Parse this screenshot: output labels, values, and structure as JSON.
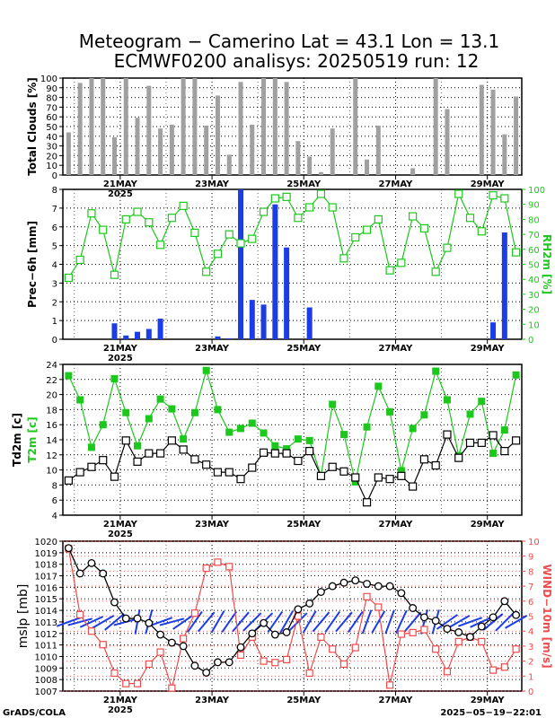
{
  "title": "Meteogram − Camerino Lat = 43.1 Lon = 13.1",
  "subtitle": "ECMWF0200 analisys: 20250519 run: 12",
  "footer_left": "GrADS/COLA",
  "footer_right": "2025−05−19−22:01",
  "colors": {
    "gray_bar": "#a0a0a0",
    "blue": "#1c3ce6",
    "green": "#1bc81b",
    "red": "#f04a4a",
    "black": "#000000"
  },
  "chart_data": [
    {
      "type": "bar",
      "panel": "clouds",
      "ylabel": "Total Clouds [%]",
      "ylim": [
        0,
        100
      ],
      "yticks": [
        "0",
        "10",
        "20",
        "30",
        "40",
        "50",
        "60",
        "70",
        "80",
        "90",
        "100"
      ],
      "xtick_labels": [
        "21MAY",
        "23MAY",
        "25MAY",
        "27MAY",
        "29MAY"
      ],
      "xtick_sublabel": "2025",
      "x_step_hours": 6,
      "values": [
        44,
        95,
        100,
        100,
        39,
        100,
        59,
        92,
        48,
        52,
        100,
        100,
        51,
        82,
        21,
        96,
        52,
        100,
        100,
        96,
        35,
        19,
        3,
        48,
        0,
        100,
        16,
        51,
        0,
        0,
        7,
        0,
        100,
        68,
        0,
        0,
        93,
        88,
        42,
        81
      ]
    },
    {
      "type": "bar+line",
      "panel": "precipitation",
      "ylabel": "Prec−6h [mm]",
      "ylabel_right": "RH2m [%]",
      "ylim": [
        0,
        8
      ],
      "ylim_right": [
        0,
        100
      ],
      "yticks": [
        "0",
        "1",
        "2",
        "3",
        "4",
        "5",
        "6",
        "7",
        "8"
      ],
      "yticks_right": [
        "0",
        "10",
        "20",
        "30",
        "40",
        "50",
        "60",
        "70",
        "80",
        "90",
        "100"
      ],
      "xtick_labels": [
        "21MAY",
        "23MAY",
        "25MAY",
        "27MAY",
        "29MAY"
      ],
      "xtick_sublabel": "2025",
      "series": [
        {
          "name": "Prec−6h",
          "kind": "bar",
          "values": [
            0,
            0,
            0,
            0,
            0.85,
            0.2,
            0.4,
            0.55,
            1.1,
            0,
            0,
            0,
            0,
            0.15,
            0.05,
            8.0,
            2.1,
            1.85,
            7.2,
            4.9,
            0,
            1.7,
            0,
            0,
            0,
            0,
            0,
            0,
            0,
            0,
            0,
            0,
            0,
            0,
            0,
            0,
            0,
            0.9,
            5.7,
            0
          ]
        },
        {
          "name": "RH2m",
          "kind": "line",
          "values": [
            41,
            53,
            84,
            73,
            43,
            80,
            85,
            78,
            63,
            81,
            89,
            71,
            45,
            57,
            70,
            64,
            67,
            85,
            94,
            95,
            81,
            88,
            97,
            88,
            54,
            68,
            73,
            80,
            46,
            51,
            82,
            74,
            45,
            61,
            97,
            81,
            72,
            96,
            94,
            58
          ]
        }
      ]
    },
    {
      "type": "line",
      "panel": "temperature",
      "ylabel": "Td2m [c]",
      "ylabel2": "T2m [c]",
      "ylim": [
        4,
        24
      ],
      "yticks": [
        "4",
        "6",
        "8",
        "10",
        "12",
        "14",
        "16",
        "18",
        "20",
        "22",
        "24"
      ],
      "xtick_labels": [
        "21MAY",
        "23MAY",
        "25MAY",
        "27MAY",
        "29MAY"
      ],
      "xtick_sublabel": "2025",
      "series": [
        {
          "name": "T2m",
          "values": [
            22.5,
            19.3,
            13,
            16,
            22.1,
            17.6,
            13.2,
            16.8,
            19.4,
            18.1,
            14.1,
            17.6,
            23.2,
            18,
            15,
            15.5,
            16.2,
            14.9,
            13.2,
            12.8,
            14.1,
            13.9,
            9.2,
            18.7,
            14.7,
            8.4,
            15.7,
            21.1,
            17.7,
            9.9,
            15.5,
            17.3,
            23.1,
            19.3,
            11.9,
            17.4,
            19.1,
            12.2,
            15.3,
            22.6
          ]
        },
        {
          "name": "Td2m",
          "values": [
            8.6,
            9.7,
            10.4,
            11.3,
            9.1,
            13.9,
            11.1,
            12.2,
            12.2,
            13.9,
            12.7,
            11.4,
            10.7,
            9.7,
            9.7,
            8.8,
            10.3,
            12.3,
            12.2,
            12.2,
            11.2,
            12.5,
            9.2,
            10.4,
            9.8,
            9.0,
            5.7,
            9.0,
            8.8,
            9.2,
            7.8,
            11.4,
            10.6,
            14.7,
            11.6,
            13.6,
            13.6,
            14.6,
            12.5,
            13.9
          ]
        }
      ]
    },
    {
      "type": "line",
      "panel": "pressure_wind",
      "ylabel": "mslp [mb]",
      "ylabel_right": "WIND−10m [m/s]",
      "ylim": [
        1007,
        1020
      ],
      "ylim_right": [
        0,
        10
      ],
      "yticks": [
        "1007",
        "1008",
        "1009",
        "1010",
        "1011",
        "1012",
        "1013",
        "1014",
        "1015",
        "1016",
        "1017",
        "1018",
        "1019",
        "1020"
      ],
      "yticks_right": [
        "0",
        "1",
        "2",
        "3",
        "4",
        "5",
        "6",
        "7",
        "8",
        "9",
        "10"
      ],
      "xtick_labels": [
        "21MAY",
        "23MAY",
        "25MAY",
        "27MAY",
        "29MAY"
      ],
      "xtick_sublabel": "2025",
      "series": [
        {
          "name": "mslp",
          "values": [
            1019.4,
            1017.2,
            1018.1,
            1017.2,
            1014.7,
            1013.3,
            1013.3,
            1012.9,
            1011.9,
            1011.2,
            1010.9,
            1009.2,
            1008.6,
            1009.5,
            1009.5,
            1010.8,
            1012.0,
            1012.9,
            1011.9,
            1012.1,
            1014.1,
            1014.6,
            1015.6,
            1016.1,
            1016.4,
            1016.6,
            1016.3,
            1016.1,
            1016.1,
            1015.5,
            1014.2,
            1013.4,
            1013.1,
            1012.4,
            1012.1,
            1011.7,
            1012.6,
            1013.4,
            1014.8,
            1013.6
          ]
        },
        {
          "name": "WIND−10m",
          "values": [
            9.5,
            5.1,
            4.0,
            3.1,
            1.2,
            0.5,
            0.5,
            1.8,
            2.6,
            0.2,
            3.5,
            5.2,
            8.2,
            8.6,
            8.3,
            2.4,
            3.6,
            2.0,
            1.9,
            2.1,
            5.0,
            1.2,
            3.6,
            2.8,
            1.8,
            2.9,
            6.3,
            5.6,
            0.4,
            3.8,
            3.9,
            4.1,
            2.8,
            1.3,
            3.3,
            3.6,
            3.3,
            1.4,
            1.6,
            2.8
          ]
        },
        {
          "name": "wind barbs",
          "kind": "barb",
          "dir_deg": [
            250,
            255,
            245,
            240,
            230,
            255,
            10,
            15,
            250,
            255,
            235,
            215,
            220,
            210,
            215,
            220,
            225,
            225,
            215,
            210,
            225,
            210,
            220,
            215,
            220,
            215,
            200,
            210,
            200,
            205,
            220,
            15,
            15,
            235,
            240,
            250,
            245,
            230,
            225,
            240
          ]
        }
      ]
    }
  ]
}
